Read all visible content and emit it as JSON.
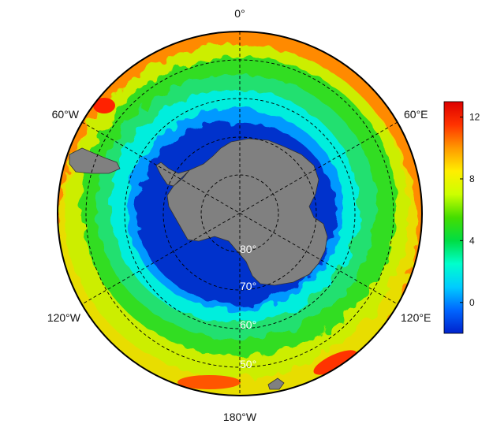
{
  "map": {
    "projection": "south-polar stereographic",
    "longitude_labels": [
      {
        "id": "lon-0",
        "text": "0°"
      },
      {
        "id": "lon-60e",
        "text": "60°E"
      },
      {
        "id": "lon-120e",
        "text": "120°E"
      },
      {
        "id": "lon-180",
        "text": "180°W"
      },
      {
        "id": "lon-120w",
        "text": "120°W"
      },
      {
        "id": "lon-60w",
        "text": "60°W"
      }
    ],
    "latitude_labels": [
      {
        "id": "lat-80",
        "text": "80°"
      },
      {
        "id": "lat-70",
        "text": "70°"
      },
      {
        "id": "lat-60",
        "text": "60°"
      },
      {
        "id": "lat-50",
        "text": "50°"
      }
    ],
    "land_color": "#808080",
    "graticule_style": "dashed"
  },
  "colorbar": {
    "min": -2,
    "max": 13,
    "ticks": [
      {
        "value": 0,
        "label": "0"
      },
      {
        "value": 4,
        "label": "4"
      },
      {
        "value": 8,
        "label": "8"
      },
      {
        "value": 12,
        "label": "12"
      }
    ],
    "colors": [
      "#0022cc",
      "#0066ff",
      "#00ccff",
      "#00ffcc",
      "#00dd44",
      "#44dd00",
      "#ccff00",
      "#ffee00",
      "#ff9900",
      "#ff3300",
      "#dd0000"
    ]
  }
}
